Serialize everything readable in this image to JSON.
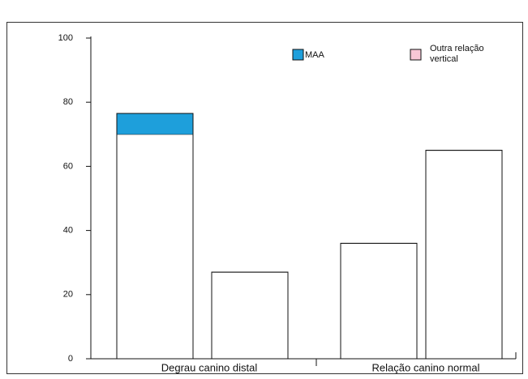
{
  "chart_data": {
    "type": "grouped_stacked_bar",
    "categories": [
      "Degrau canino distal",
      "Relação canino normal"
    ],
    "legend": [
      {
        "name": "MAA",
        "color": "#1e9fdb"
      },
      {
        "name": "Outra relação vertical",
        "color": "#f7c6d6"
      }
    ],
    "bars": [
      [
        70,
        6.5
      ],
      [
        27
      ],
      [
        36
      ],
      [
        65
      ]
    ],
    "segment_colors": [
      "#ffffff",
      "#1e9fdb"
    ],
    "ylim": [
      0,
      100
    ],
    "yticks": [
      0,
      20,
      40,
      60,
      80,
      100
    ]
  }
}
